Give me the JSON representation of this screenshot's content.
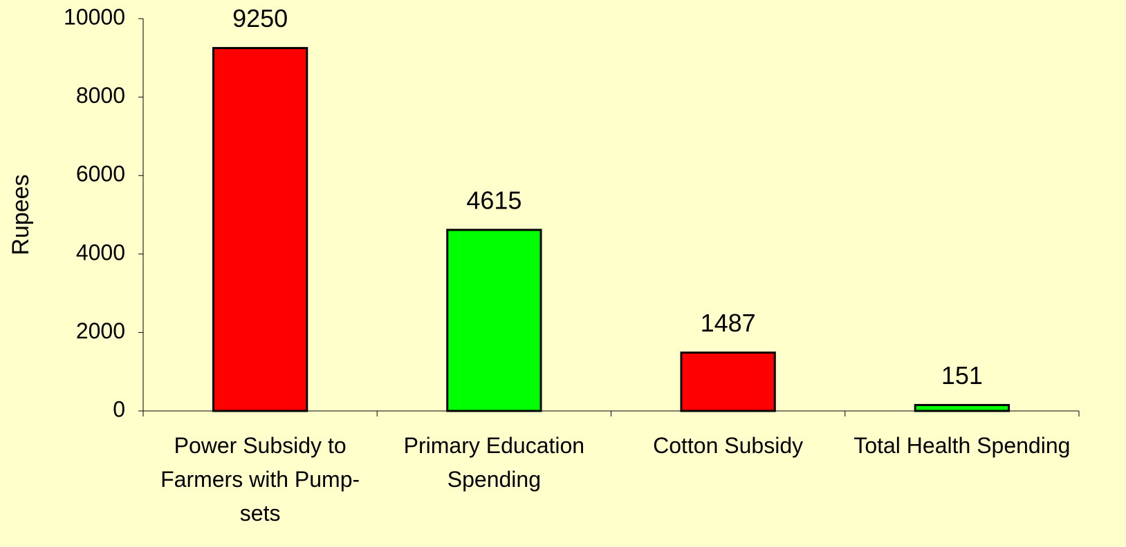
{
  "chart_data": {
    "type": "bar",
    "y_label": "Rupees",
    "categories": [
      "Power Subsidy to Farmers with Pump-sets",
      "Primary Education Spending",
      "Cotton Subsidy",
      "Total Health Spending"
    ],
    "values": [
      9250,
      4615,
      1487,
      151
    ],
    "colors": [
      "#ff0000",
      "#00ff00",
      "#ff0000",
      "#00ff00"
    ],
    "ylim": [
      0,
      10000
    ],
    "yticks": [
      0,
      2000,
      4000,
      6000,
      8000,
      10000
    ],
    "grid": false
  }
}
